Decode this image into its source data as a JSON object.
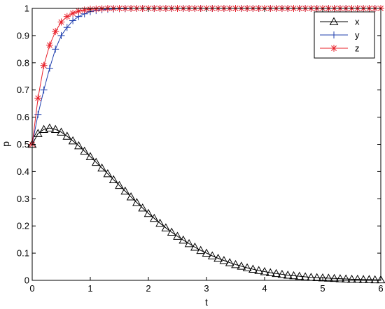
{
  "chart_data": {
    "type": "line",
    "title": "",
    "xlabel": "t",
    "ylabel": "p",
    "xlim": [
      0,
      6
    ],
    "ylim": [
      0,
      1
    ],
    "xticks": [
      "0",
      "1",
      "2",
      "3",
      "4",
      "5",
      "6"
    ],
    "yticks": [
      "0",
      "0.1",
      "0.2",
      "0.3",
      "0.4",
      "0.5",
      "0.6",
      "0.7",
      "0.8",
      "0.9",
      "1"
    ],
    "grid": false,
    "legend_position": "top-right",
    "series": [
      {
        "name": "x",
        "color": "#000000",
        "marker": "triangle",
        "x": [
          0,
          0.1,
          0.2,
          0.3,
          0.4,
          0.5,
          0.6,
          0.7,
          0.8,
          0.9,
          1.0,
          1.1,
          1.2,
          1.3,
          1.4,
          1.5,
          1.6,
          1.7,
          1.8,
          1.9,
          2.0,
          2.1,
          2.2,
          2.3,
          2.4,
          2.5,
          2.6,
          2.7,
          2.8,
          2.9,
          3.0,
          3.1,
          3.2,
          3.3,
          3.4,
          3.5,
          3.6,
          3.7,
          3.8,
          3.9,
          4.0,
          4.1,
          4.2,
          4.3,
          4.4,
          4.5,
          4.6,
          4.7,
          4.8,
          4.9,
          5.0,
          5.1,
          5.2,
          5.3,
          5.4,
          5.5,
          5.6,
          5.7,
          5.8,
          5.9,
          6.0
        ],
        "y": [
          0.5,
          0.54,
          0.555,
          0.56,
          0.555,
          0.545,
          0.53,
          0.513,
          0.495,
          0.475,
          0.455,
          0.434,
          0.413,
          0.392,
          0.37,
          0.349,
          0.328,
          0.307,
          0.286,
          0.266,
          0.246,
          0.228,
          0.21,
          0.193,
          0.177,
          0.162,
          0.148,
          0.135,
          0.122,
          0.11,
          0.1,
          0.09,
          0.081,
          0.073,
          0.065,
          0.058,
          0.052,
          0.046,
          0.041,
          0.036,
          0.032,
          0.028,
          0.025,
          0.022,
          0.019,
          0.017,
          0.015,
          0.013,
          0.011,
          0.01,
          0.009,
          0.008,
          0.007,
          0.006,
          0.005,
          0.004,
          0.004,
          0.003,
          0.003,
          0.002,
          0.002
        ]
      },
      {
        "name": "y",
        "color": "#1f3fae",
        "marker": "plus",
        "x": [
          0,
          0.1,
          0.2,
          0.3,
          0.4,
          0.5,
          0.6,
          0.7,
          0.8,
          0.9,
          1.0,
          1.1,
          1.2,
          1.3,
          1.4,
          1.5,
          1.6,
          1.7,
          1.8,
          1.9,
          2.0,
          2.1,
          2.2,
          2.3,
          2.4,
          2.5,
          2.6,
          2.7,
          2.8,
          2.9,
          3.0,
          3.1,
          3.2,
          3.3,
          3.4,
          3.5,
          3.6,
          3.7,
          3.8,
          3.9,
          4.0,
          4.1,
          4.2,
          4.3,
          4.4,
          4.5,
          4.6,
          4.7,
          4.8,
          4.9,
          5.0,
          5.1,
          5.2,
          5.3,
          5.4,
          5.5,
          5.6,
          5.7,
          5.8,
          5.9,
          6.0
        ],
        "y": [
          0.5,
          0.61,
          0.7,
          0.78,
          0.85,
          0.9,
          0.93,
          0.955,
          0.97,
          0.98,
          0.988,
          0.992,
          0.995,
          0.997,
          0.998,
          0.999,
          0.999,
          1,
          1,
          1,
          1,
          1,
          1,
          1,
          1,
          1,
          1,
          1,
          1,
          1,
          1,
          1,
          1,
          1,
          1,
          1,
          1,
          1,
          1,
          1,
          1,
          1,
          1,
          1,
          1,
          1,
          1,
          1,
          1,
          1,
          1,
          1,
          1,
          1,
          1,
          1,
          1,
          1,
          1,
          1,
          1
        ]
      },
      {
        "name": "z",
        "color": "#e8202a",
        "marker": "asterisk",
        "x": [
          0,
          0.1,
          0.2,
          0.3,
          0.4,
          0.5,
          0.6,
          0.7,
          0.8,
          0.9,
          1.0,
          1.1,
          1.2,
          1.3,
          1.4,
          1.5,
          1.6,
          1.7,
          1.8,
          1.9,
          2.0,
          2.1,
          2.2,
          2.3,
          2.4,
          2.5,
          2.6,
          2.7,
          2.8,
          2.9,
          3.0,
          3.1,
          3.2,
          3.3,
          3.4,
          3.5,
          3.6,
          3.7,
          3.8,
          3.9,
          4.0,
          4.1,
          4.2,
          4.3,
          4.4,
          4.5,
          4.6,
          4.7,
          4.8,
          4.9,
          5.0,
          5.1,
          5.2,
          5.3,
          5.4,
          5.5,
          5.6,
          5.7,
          5.8,
          5.9,
          6.0
        ],
        "y": [
          0.5,
          0.67,
          0.79,
          0.865,
          0.915,
          0.95,
          0.97,
          0.982,
          0.99,
          0.994,
          0.997,
          0.998,
          0.999,
          1,
          1,
          1,
          1,
          1,
          1,
          1,
          1,
          1,
          1,
          1,
          1,
          1,
          1,
          1,
          1,
          1,
          1,
          1,
          1,
          1,
          1,
          1,
          1,
          1,
          1,
          1,
          1,
          1,
          1,
          1,
          1,
          1,
          1,
          1,
          1,
          1,
          1,
          1,
          1,
          1,
          1,
          1,
          1,
          1,
          1,
          1,
          1
        ]
      }
    ]
  }
}
